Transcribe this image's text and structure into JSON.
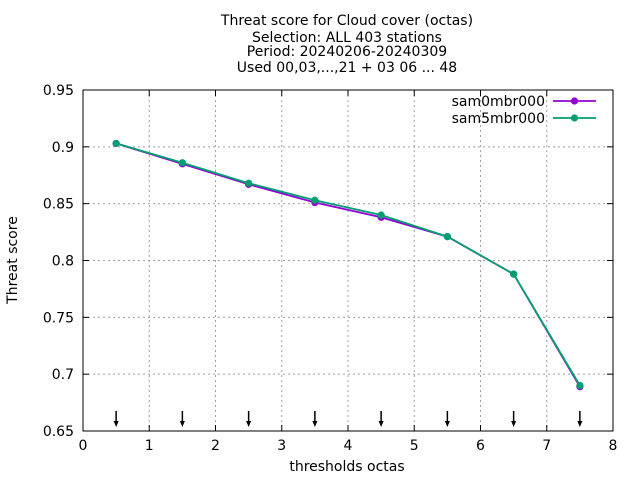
{
  "chart_data": {
    "type": "line",
    "title_lines": [
      "Threat score  for Cloud cover (octas)",
      "Selection: ALL    403 stations",
      "Period: 20240206-20240309",
      "Used 00,03,...,21 + 03 06 ... 48"
    ],
    "xlabel": "thresholds octas",
    "ylabel": "Threat score",
    "xlim": [
      0,
      8
    ],
    "ylim": [
      0.65,
      0.95
    ],
    "x_ticks": [
      0,
      1,
      2,
      3,
      4,
      5,
      6,
      7,
      8
    ],
    "y_ticks": [
      0.65,
      0.7,
      0.75,
      0.8,
      0.85,
      0.9,
      0.95
    ],
    "grid": true,
    "legend_position": "top-right",
    "series": [
      {
        "name": "sam0mbr000",
        "color": "#9400d3",
        "x": [
          0.5,
          1.5,
          2.5,
          3.5,
          4.5,
          5.5,
          6.5,
          7.5
        ],
        "values": [
          0.903,
          0.885,
          0.867,
          0.851,
          0.838,
          0.821,
          0.788,
          0.689
        ]
      },
      {
        "name": "sam5mbr000",
        "color": "#009e73",
        "x": [
          0.5,
          1.5,
          2.5,
          3.5,
          4.5,
          5.5,
          6.5,
          7.5
        ],
        "values": [
          0.903,
          0.886,
          0.868,
          0.853,
          0.84,
          0.821,
          0.788,
          0.69
        ]
      }
    ],
    "threshold_markers_x": [
      0.5,
      1.5,
      2.5,
      3.5,
      4.5,
      5.5,
      6.5,
      7.5
    ]
  }
}
